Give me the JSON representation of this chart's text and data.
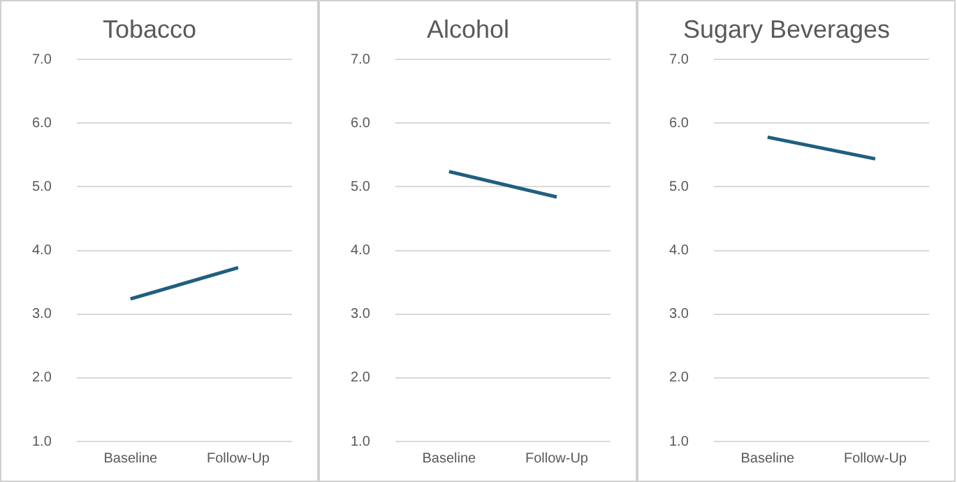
{
  "chart_data": [
    {
      "type": "line",
      "title": "Tobacco",
      "categories": [
        "Baseline",
        "Follow-Up"
      ],
      "values": [
        3.24,
        3.73
      ],
      "color": "#1f5f7f",
      "marker": "none",
      "ylim": [
        1,
        7
      ],
      "yticks": [
        {
          "value": 1,
          "label": "1.0"
        },
        {
          "value": 2,
          "label": "2.0"
        },
        {
          "value": 3,
          "label": "3.0"
        },
        {
          "value": 4,
          "label": "4.0"
        },
        {
          "value": 5,
          "label": "5.0"
        },
        {
          "value": 6,
          "label": "6.0"
        },
        {
          "value": 7,
          "label": "7.0"
        }
      ],
      "grid": "y",
      "legend": false
    },
    {
      "type": "line",
      "title": "Alcohol",
      "categories": [
        "Baseline",
        "Follow-Up"
      ],
      "values": [
        5.24,
        4.84
      ],
      "color": "#1f5f7f",
      "marker": "none",
      "ylim": [
        1,
        7
      ],
      "yticks": [
        {
          "value": 1,
          "label": "1.0"
        },
        {
          "value": 2,
          "label": "2.0"
        },
        {
          "value": 3,
          "label": "3.0"
        },
        {
          "value": 4,
          "label": "4.0"
        },
        {
          "value": 5,
          "label": "5.0"
        },
        {
          "value": 6,
          "label": "6.0"
        },
        {
          "value": 7,
          "label": "7.0"
        }
      ],
      "grid": "y",
      "legend": false
    },
    {
      "type": "line",
      "title": "Sugary Beverages",
      "categories": [
        "Baseline",
        "Follow-Up"
      ],
      "values": [
        5.78,
        5.44
      ],
      "color": "#1f5f7f",
      "marker": "none",
      "ylim": [
        1,
        7
      ],
      "yticks": [
        {
          "value": 1,
          "label": "1.0"
        },
        {
          "value": 2,
          "label": "2.0"
        },
        {
          "value": 3,
          "label": "3.0"
        },
        {
          "value": 4,
          "label": "4.0"
        },
        {
          "value": 5,
          "label": "5.0"
        },
        {
          "value": 6,
          "label": "6.0"
        },
        {
          "value": 7,
          "label": "7.0"
        }
      ],
      "grid": "y",
      "legend": false
    }
  ]
}
